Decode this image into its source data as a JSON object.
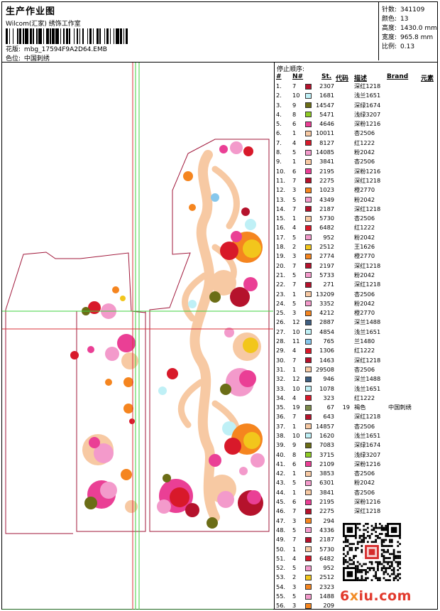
{
  "header": {
    "title": "生产作业图",
    "company": "Wilcom(汇家) 绣饰工作室",
    "design_label": "花版:",
    "design_value": "mbg_17594F9A2D64.EMB",
    "color_label": "色位:",
    "color_value": "中国刺绣"
  },
  "stats": [
    {
      "label": "针数:",
      "value": "341109"
    },
    {
      "label": "颜色:",
      "value": "13"
    },
    {
      "label": "高度:",
      "value": "1430.0 mm"
    },
    {
      "label": "宽度:",
      "value": "965.8 mm"
    },
    {
      "label": "比例:",
      "value": "0.13"
    }
  ],
  "stop_table": {
    "title": "停止顺序:",
    "headers": {
      "idx": "#",
      "n": "N#",
      "st": "St.",
      "code": "代码",
      "desc": "描述",
      "brand": "Brand",
      "elem": "元素"
    },
    "rows": [
      {
        "i": "1.",
        "n": "7",
        "c": "#b5122c",
        "st": "2307",
        "code": "",
        "desc": "深红1218",
        "brand": ""
      },
      {
        "i": "2.",
        "n": "10",
        "c": "#bff0f6",
        "st": "1681",
        "code": "",
        "desc": "浅兰1651",
        "brand": ""
      },
      {
        "i": "3.",
        "n": "9",
        "c": "#6b6d16",
        "st": "14547",
        "code": "",
        "desc": "深绿1674",
        "brand": ""
      },
      {
        "i": "4.",
        "n": "8",
        "c": "#8fcb25",
        "st": "5471",
        "code": "",
        "desc": "浅绿3207",
        "brand": ""
      },
      {
        "i": "5.",
        "n": "6",
        "c": "#ea3f95",
        "st": "4646",
        "code": "",
        "desc": "深粉1216",
        "brand": ""
      },
      {
        "i": "6.",
        "n": "1",
        "c": "#f7c9a3",
        "st": "10011",
        "code": "",
        "desc": "杏2506",
        "brand": ""
      },
      {
        "i": "7.",
        "n": "4",
        "c": "#d8192a",
        "st": "8127",
        "code": "",
        "desc": "红1222",
        "brand": ""
      },
      {
        "i": "8.",
        "n": "5",
        "c": "#f39acb",
        "st": "14085",
        "code": "",
        "desc": "粉2042",
        "brand": ""
      },
      {
        "i": "9.",
        "n": "1",
        "c": "#f7c9a3",
        "st": "3841",
        "code": "",
        "desc": "杏2506",
        "brand": ""
      },
      {
        "i": "10.",
        "n": "6",
        "c": "#ea3f95",
        "st": "2195",
        "code": "",
        "desc": "深粉1216",
        "brand": ""
      },
      {
        "i": "11.",
        "n": "7",
        "c": "#b5122c",
        "st": "2275",
        "code": "",
        "desc": "深红1218",
        "brand": ""
      },
      {
        "i": "12.",
        "n": "3",
        "c": "#f5851f",
        "st": "1023",
        "code": "",
        "desc": "橙2770",
        "brand": ""
      },
      {
        "i": "13.",
        "n": "5",
        "c": "#f39acb",
        "st": "4349",
        "code": "",
        "desc": "粉2042",
        "brand": ""
      },
      {
        "i": "14.",
        "n": "7",
        "c": "#b5122c",
        "st": "2187",
        "code": "",
        "desc": "深红1218",
        "brand": ""
      },
      {
        "i": "15.",
        "n": "1",
        "c": "#f7c9a3",
        "st": "5730",
        "code": "",
        "desc": "杏2506",
        "brand": ""
      },
      {
        "i": "16.",
        "n": "4",
        "c": "#d8192a",
        "st": "6482",
        "code": "",
        "desc": "红1222",
        "brand": ""
      },
      {
        "i": "17.",
        "n": "5",
        "c": "#f39acb",
        "st": "952",
        "code": "",
        "desc": "粉2042",
        "brand": ""
      },
      {
        "i": "18.",
        "n": "2",
        "c": "#f2c61c",
        "st": "2512",
        "code": "",
        "desc": "王1626",
        "brand": ""
      },
      {
        "i": "19.",
        "n": "3",
        "c": "#f5851f",
        "st": "2774",
        "code": "",
        "desc": "橙2770",
        "brand": ""
      },
      {
        "i": "20.",
        "n": "7",
        "c": "#b5122c",
        "st": "2197",
        "code": "",
        "desc": "深红1218",
        "brand": ""
      },
      {
        "i": "21.",
        "n": "5",
        "c": "#f39acb",
        "st": "5733",
        "code": "",
        "desc": "粉2042",
        "brand": ""
      },
      {
        "i": "22.",
        "n": "7",
        "c": "#b5122c",
        "st": "271",
        "code": "",
        "desc": "深红1218",
        "brand": ""
      },
      {
        "i": "23.",
        "n": "1",
        "c": "#f7c9a3",
        "st": "13209",
        "code": "",
        "desc": "杏2506",
        "brand": ""
      },
      {
        "i": "24.",
        "n": "5",
        "c": "#f39acb",
        "st": "3352",
        "code": "",
        "desc": "粉2042",
        "brand": ""
      },
      {
        "i": "25.",
        "n": "3",
        "c": "#f5851f",
        "st": "4212",
        "code": "",
        "desc": "橙2770",
        "brand": ""
      },
      {
        "i": "26.",
        "n": "12",
        "c": "#3f5f82",
        "st": "2887",
        "code": "",
        "desc": "深兰1488",
        "brand": ""
      },
      {
        "i": "27.",
        "n": "10",
        "c": "#bff0f6",
        "st": "4854",
        "code": "",
        "desc": "浅兰1651",
        "brand": ""
      },
      {
        "i": "28.",
        "n": "11",
        "c": "#86c7ec",
        "st": "765",
        "code": "",
        "desc": "兰1480",
        "brand": ""
      },
      {
        "i": "29.",
        "n": "4",
        "c": "#d8192a",
        "st": "1306",
        "code": "",
        "desc": "红1222",
        "brand": ""
      },
      {
        "i": "30.",
        "n": "7",
        "c": "#b5122c",
        "st": "1463",
        "code": "",
        "desc": "深红1218",
        "brand": ""
      },
      {
        "i": "31.",
        "n": "1",
        "c": "#f7c9a3",
        "st": "29508",
        "code": "",
        "desc": "杏2506",
        "brand": ""
      },
      {
        "i": "32.",
        "n": "12",
        "c": "#3f5f82",
        "st": "946",
        "code": "",
        "desc": "深兰1488",
        "brand": ""
      },
      {
        "i": "33.",
        "n": "10",
        "c": "#bff0f6",
        "st": "1078",
        "code": "",
        "desc": "浅兰1651",
        "brand": ""
      },
      {
        "i": "34.",
        "n": "4",
        "c": "#d8192a",
        "st": "323",
        "code": "",
        "desc": "红1222",
        "brand": ""
      },
      {
        "i": "35.",
        "n": "19",
        "c": "#7c8a4b",
        "st": "67",
        "code": "19",
        "desc": "褐色",
        "brand": "中国刺绣"
      },
      {
        "i": "36.",
        "n": "7",
        "c": "#b5122c",
        "st": "643",
        "code": "",
        "desc": "深红1218",
        "brand": ""
      },
      {
        "i": "37.",
        "n": "1",
        "c": "#f7c9a3",
        "st": "14857",
        "code": "",
        "desc": "杏2506",
        "brand": ""
      },
      {
        "i": "38.",
        "n": "10",
        "c": "#bff0f6",
        "st": "1620",
        "code": "",
        "desc": "浅兰1651",
        "brand": ""
      },
      {
        "i": "39.",
        "n": "9",
        "c": "#6b6d16",
        "st": "7083",
        "code": "",
        "desc": "深绿1674",
        "brand": ""
      },
      {
        "i": "40.",
        "n": "8",
        "c": "#8fcb25",
        "st": "3715",
        "code": "",
        "desc": "浅绿3207",
        "brand": ""
      },
      {
        "i": "41.",
        "n": "6",
        "c": "#ea3f95",
        "st": "2109",
        "code": "",
        "desc": "深粉1216",
        "brand": ""
      },
      {
        "i": "42.",
        "n": "1",
        "c": "#f7c9a3",
        "st": "3853",
        "code": "",
        "desc": "杏2506",
        "brand": ""
      },
      {
        "i": "43.",
        "n": "5",
        "c": "#f39acb",
        "st": "6301",
        "code": "",
        "desc": "粉2042",
        "brand": ""
      },
      {
        "i": "44.",
        "n": "1",
        "c": "#f7c9a3",
        "st": "3841",
        "code": "",
        "desc": "杏2506",
        "brand": ""
      },
      {
        "i": "45.",
        "n": "6",
        "c": "#ea3f95",
        "st": "2195",
        "code": "",
        "desc": "深粉1216",
        "brand": ""
      },
      {
        "i": "46.",
        "n": "7",
        "c": "#b5122c",
        "st": "2275",
        "code": "",
        "desc": "深红1218",
        "brand": ""
      },
      {
        "i": "47.",
        "n": "3",
        "c": "#f5851f",
        "st": "294",
        "code": "",
        "desc": "",
        "brand": ""
      },
      {
        "i": "48.",
        "n": "5",
        "c": "#f39acb",
        "st": "4336",
        "code": "",
        "desc": "",
        "brand": ""
      },
      {
        "i": "49.",
        "n": "7",
        "c": "#b5122c",
        "st": "2187",
        "code": "",
        "desc": "",
        "brand": ""
      },
      {
        "i": "50.",
        "n": "1",
        "c": "#f7c9a3",
        "st": "5730",
        "code": "",
        "desc": "",
        "brand": ""
      },
      {
        "i": "51.",
        "n": "4",
        "c": "#d8192a",
        "st": "6482",
        "code": "",
        "desc": "",
        "brand": ""
      },
      {
        "i": "52.",
        "n": "5",
        "c": "#f39acb",
        "st": "952",
        "code": "",
        "desc": "",
        "brand": ""
      },
      {
        "i": "53.",
        "n": "2",
        "c": "#f2c61c",
        "st": "2512",
        "code": "",
        "desc": "",
        "brand": ""
      },
      {
        "i": "54.",
        "n": "3",
        "c": "#f5851f",
        "st": "2323",
        "code": "",
        "desc": "",
        "brand": ""
      },
      {
        "i": "55.",
        "n": "5",
        "c": "#f39acb",
        "st": "1488",
        "code": "",
        "desc": "",
        "brand": ""
      },
      {
        "i": "56.",
        "n": "3",
        "c": "#f5851f",
        "st": "209",
        "code": "",
        "desc": "",
        "brand": ""
      }
    ]
  },
  "watermark": {
    "prefix": "6",
    "dot": "x",
    "rest": "iu.com"
  },
  "colors": {
    "outline": "#a0173a",
    "guide_green": "#3fd13f",
    "guide_red": "#d9303a"
  }
}
